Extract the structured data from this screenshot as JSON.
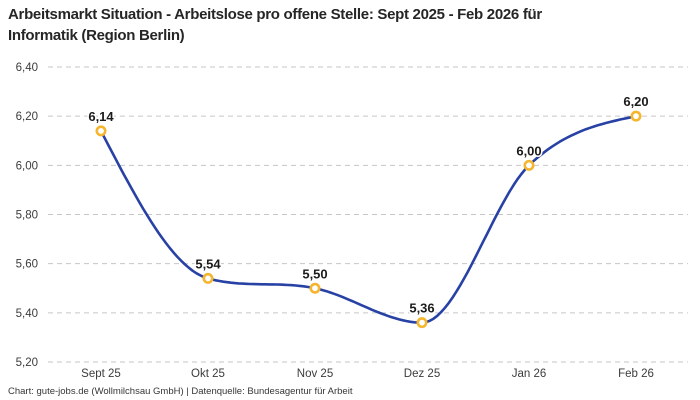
{
  "header": {
    "title_lines": [
      "Arbeitsmarkt Situation - Arbeitslose pro offene Stelle: Sept 2025 - Feb 2026 für",
      "Informatik (Region Berlin)"
    ]
  },
  "footer": {
    "credit": "Chart: gute-jobs.de (Wollmilchsau GmbH) | Datenquelle: Bundesagentur für Arbeit"
  },
  "chart_data": {
    "type": "line",
    "title": "Arbeitsmarkt Situation - Arbeitslose pro offene Stelle: Sept 2025 - Feb 2026 für Informatik (Region Berlin)",
    "categories": [
      "Sept 25",
      "Okt 25",
      "Nov 25",
      "Dez 25",
      "Jan 26",
      "Feb 26"
    ],
    "values": [
      6.14,
      5.54,
      5.5,
      5.36,
      6.0,
      6.2
    ],
    "value_labels": [
      "6,14",
      "5,54",
      "5,50",
      "5,36",
      "6,00",
      "6,20"
    ],
    "xlabel": "",
    "ylabel": "",
    "ylim": [
      5.2,
      6.4
    ],
    "ytick_values": [
      6.4,
      6.2,
      6.0,
      5.8,
      5.6,
      5.4,
      5.2
    ],
    "ytick_labels": [
      "6,40",
      "6,20",
      "6,00",
      "5,80",
      "5,60",
      "5,40",
      "5,20"
    ],
    "grid": "horizontal-dashed",
    "legend": "none",
    "curve": "smooth-monotone",
    "colors": {
      "line": "#2841a5",
      "marker_ring": "#f5b52e",
      "marker_fill": "#ffffff",
      "grid": "#c6c6c6",
      "title_text": "#262626",
      "tick_text": "#3c3c3c",
      "label_text": "#1b1b1b"
    }
  }
}
